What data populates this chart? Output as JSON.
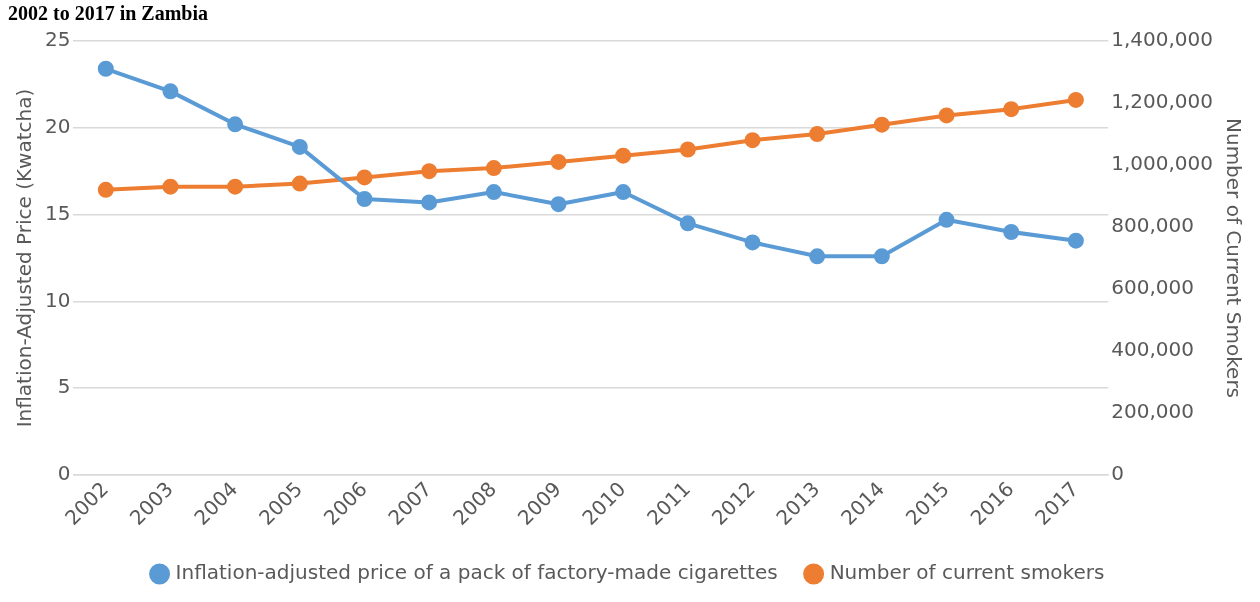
{
  "chart_data": {
    "type": "line",
    "title": "2002 to 2017 in Zambia",
    "ylabel": "Inflation-Adjusted Price (Kwatcha)",
    "y2label": "Number of Current Smokers",
    "categories": [
      "2002",
      "2003",
      "2004",
      "2005",
      "2006",
      "2007",
      "2008",
      "2009",
      "2010",
      "2011",
      "2012",
      "2013",
      "2014",
      "2015",
      "2016",
      "2017"
    ],
    "series": [
      {
        "name": "Inflation-adjusted price of a pack of factory-made cigarettes",
        "color": "#5b9bd5",
        "values": [
          23.4,
          22.1,
          20.2,
          18.9,
          15.9,
          15.7,
          16.3,
          15.6,
          16.3,
          14.5,
          13.4,
          12.6,
          12.6,
          14.7,
          14.0,
          13.5
        ]
      },
      {
        "name": "Number of current smokers",
        "color": "#ed7d31",
        "axis": "y2",
        "values": [
          920000,
          930000,
          930000,
          940000,
          960000,
          980000,
          990000,
          1010000,
          1030000,
          1050000,
          1080000,
          1100000,
          1130000,
          1160000,
          1180000,
          1210000
        ]
      }
    ],
    "ylim": [
      0,
      25
    ],
    "yticks": [
      0,
      5,
      10,
      15,
      20,
      25
    ],
    "y2lim": [
      0,
      1400000
    ],
    "y2ticks": [
      {
        "value": 0,
        "label": "0"
      },
      {
        "value": 200000,
        "label": "200,000"
      },
      {
        "value": 400000,
        "label": "400,000"
      },
      {
        "value": 600000,
        "label": "600,000"
      },
      {
        "value": 800000,
        "label": "800,000"
      },
      {
        "value": 1000000,
        "label": "1,000,000"
      },
      {
        "value": 1200000,
        "label": "1,200,000"
      },
      {
        "value": 1400000,
        "label": "1,400,000"
      }
    ],
    "grid": "y",
    "legend": "bottom",
    "marker": "circle",
    "line_style": "solid"
  }
}
